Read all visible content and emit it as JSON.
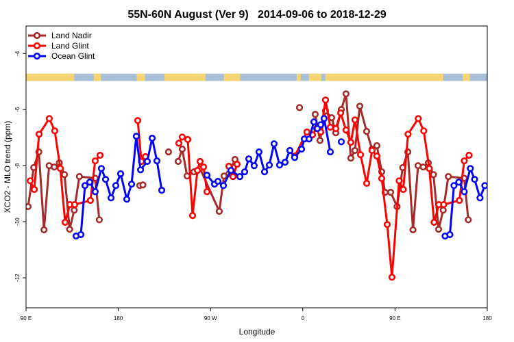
{
  "chart_data": {
    "type": "line",
    "title": "55N-60N August (Ver 9)   2014-09-06 to 2018-12-29",
    "xlabel": "Longitude",
    "ylabel": "XCO2 - MLO trend (ppm)",
    "xlim": [
      90,
      540
    ],
    "ylim": [
      -13.07,
      -3.02
    ],
    "grid": false,
    "legend_position": "top-left",
    "x_ticks": [
      {
        "value": 90,
        "label": "90 E"
      },
      {
        "value": 180,
        "label": "180"
      },
      {
        "value": 270,
        "label": "90 W"
      },
      {
        "value": 360,
        "label": "0"
      },
      {
        "value": 450,
        "label": "90 E"
      },
      {
        "value": 540,
        "label": "180"
      }
    ],
    "y_ticks": [
      {
        "value": -4,
        "label": "-4"
      },
      {
        "value": -6,
        "label": "-6"
      },
      {
        "value": -8,
        "label": "-8"
      },
      {
        "value": -10,
        "label": "-10"
      },
      {
        "value": -12,
        "label": "-12"
      }
    ],
    "map_strip": {
      "y_range": [
        -4.98,
        -4.72
      ],
      "land_color": "#F5D471",
      "ocean_color": "#A9BFD8",
      "land_segments": [
        [
          90,
          137
        ],
        [
          156,
          163
        ],
        [
          198,
          206
        ],
        [
          225,
          265
        ],
        [
          283,
          299
        ],
        [
          354,
          358
        ],
        [
          366,
          378
        ],
        [
          382,
          497
        ],
        [
          516,
          523
        ]
      ]
    },
    "series": [
      {
        "name": "Land Nadir",
        "color": "#A52A2A",
        "segments": [
          [
            [
              92,
              -9.46
            ],
            [
              97.5,
              -8.07
            ],
            [
              102.5,
              -7.51
            ],
            [
              107.5,
              -10.29
            ],
            [
              112.5,
              -8.0
            ],
            [
              117.5,
              -8.05
            ],
            [
              122.5,
              -7.9
            ],
            [
              127.5,
              -8.32
            ],
            [
              132.5,
              -10.27
            ],
            [
              137,
              -9.59
            ],
            [
              142,
              -8.39
            ],
            [
              157.5,
              -8.45
            ],
            [
              161.5,
              -9.93
            ]
          ],
          [
            [
              201,
              -8.71
            ],
            [
              204,
              -8.69
            ]
          ],
          [
            [
              229,
              -7.51
            ]
          ],
          [
            [
              238.4,
              -7.85
            ],
            [
              242.4,
              -7.41
            ],
            [
              247.1,
              -8.37
            ],
            [
              253.8,
              -8.22
            ],
            [
              259.8,
              -8.1
            ],
            [
              278.5,
              -9.63
            ],
            [
              283.2,
              -8.37
            ],
            [
              287.9,
              -8.29
            ],
            [
              293.9,
              -7.78
            ]
          ],
          [
            [
              356.8,
              -5.93
            ]
          ],
          [
            [
              372.1,
              -6.17
            ],
            [
              376.8,
              -7.1
            ],
            [
              382.2,
              -6.05
            ],
            [
              388.2,
              -6.29
            ],
            [
              392.2,
              -6.83
            ],
            [
              397.6,
              -6.0
            ],
            [
              402.2,
              -5.44
            ],
            [
              406.9,
              -7.73
            ],
            [
              410.9,
              -7.46
            ],
            [
              415.6,
              -5.88
            ],
            [
              422.3,
              -6.78
            ],
            [
              427.6,
              -7.41
            ],
            [
              432.3,
              -7.29
            ],
            [
              437,
              -8.22
            ],
            [
              440.3,
              -8.95
            ],
            [
              445.7,
              -8.95
            ],
            [
              452,
              -9.46
            ],
            [
              457.5,
              -8.07
            ],
            [
              462.5,
              -7.51
            ],
            [
              467.5,
              -10.29
            ],
            [
              472.5,
              -8.0
            ],
            [
              477.5,
              -8.05
            ],
            [
              482.5,
              -7.9
            ],
            [
              487.5,
              -8.32
            ],
            [
              492.5,
              -10.27
            ],
            [
              497,
              -9.59
            ],
            [
              502,
              -8.39
            ],
            [
              517.5,
              -8.45
            ],
            [
              521.5,
              -9.93
            ]
          ]
        ]
      },
      {
        "name": "Land Glint",
        "color": "#FF0000",
        "segments": [
          [
            [
              94,
              -8.54
            ],
            [
              98,
              -8.85
            ],
            [
              102.7,
              -6.88
            ],
            [
              112.7,
              -6.32
            ],
            [
              118,
              -6.76
            ],
            [
              123.4,
              -8.1
            ],
            [
              128.1,
              -10.02
            ],
            [
              132.8,
              -9.39
            ],
            [
              137.5,
              -9.39
            ],
            [
              152.8,
              -9.24
            ],
            [
              157.5,
              -7.83
            ],
            [
              162.2,
              -7.63
            ]
          ],
          [
            [
              199,
              -6.39
            ],
            [
              202.5,
              -7.85
            ],
            [
              206.5,
              -7.68
            ]
          ],
          [
            [
              239.1,
              -7.2
            ],
            [
              242.4,
              -6.98
            ],
            [
              247.8,
              -7.07
            ],
            [
              252.5,
              -9.78
            ],
            [
              257.2,
              -8.17
            ],
            [
              259.8,
              -7.85
            ],
            [
              263.2,
              -8.05
            ],
            [
              266.5,
              -8.93
            ]
          ],
          [
            [
              287.9,
              -8.02
            ],
            [
              291.9,
              -8.39
            ],
            [
              295.9,
              -7.95
            ]
          ],
          [
            [
              352.1,
              -7.66
            ],
            [
              364.1,
              -6.8
            ],
            [
              369.5,
              -6.9
            ],
            [
              373.5,
              -6.68
            ],
            [
              377.5,
              -6.8
            ],
            [
              382.2,
              -5.66
            ],
            [
              386.9,
              -6.63
            ],
            [
              392.2,
              -6.68
            ],
            [
              396.9,
              -6.12
            ],
            [
              402.2,
              -6.73
            ],
            [
              406.9,
              -7.17
            ],
            [
              410.9,
              -6.37
            ],
            [
              416.3,
              -7.61
            ],
            [
              422.3,
              -8.63
            ],
            [
              427.6,
              -7.46
            ],
            [
              432.3,
              -7.66
            ],
            [
              437,
              -8.46
            ],
            [
              442.4,
              -10.1
            ],
            [
              447,
              -11.98
            ],
            [
              454,
              -8.54
            ],
            [
              458,
              -8.85
            ],
            [
              462.7,
              -6.88
            ],
            [
              472.7,
              -6.32
            ],
            [
              478,
              -6.76
            ],
            [
              483.4,
              -8.1
            ],
            [
              488.1,
              -10.02
            ],
            [
              492.8,
              -9.39
            ],
            [
              497.5,
              -9.39
            ],
            [
              512.8,
              -9.24
            ],
            [
              517.5,
              -7.83
            ],
            [
              522.2,
              -7.63
            ]
          ]
        ]
      },
      {
        "name": "Ocean Glint",
        "color": "#0000FF",
        "segments": [
          [
            [
              138.8,
              -10.51
            ],
            [
              143.5,
              -10.46
            ],
            [
              147.5,
              -8.71
            ],
            [
              152.2,
              -8.59
            ],
            [
              157.5,
              -8.93
            ],
            [
              163.5,
              -8.1
            ],
            [
              167.6,
              -8.49
            ],
            [
              172.9,
              -9.15
            ],
            [
              177.6,
              -8.71
            ],
            [
              182.3,
              -8.29
            ],
            [
              188.3,
              -9.2
            ],
            [
              193,
              -8.66
            ],
            [
              197.6,
              -6.95
            ],
            [
              201.7,
              -8.15
            ],
            [
              208.3,
              -7.85
            ],
            [
              213,
              -7.02
            ],
            [
              217.7,
              -7.83
            ],
            [
              222.4,
              -8.88
            ]
          ],
          [
            [
              266.5,
              -8.34
            ],
            [
              273.9,
              -8.66
            ],
            [
              277.2,
              -8.56
            ],
            [
              282.6,
              -8.71
            ],
            [
              289.9,
              -8.17
            ],
            [
              298.6,
              -8.39
            ],
            [
              303.3,
              -8.22
            ],
            [
              307.3,
              -7.76
            ],
            [
              312.6,
              -8.0
            ],
            [
              317.3,
              -7.51
            ],
            [
              322.7,
              -8.22
            ],
            [
              327.4,
              -7.98
            ],
            [
              332,
              -7.22
            ],
            [
              337.4,
              -7.98
            ],
            [
              342.7,
              -7.88
            ],
            [
              347.4,
              -7.46
            ],
            [
              352.1,
              -7.71
            ],
            [
              358.8,
              -7.41
            ],
            [
              361.5,
              -7.05
            ],
            [
              366.1,
              -7.05
            ],
            [
              370.8,
              -6.44
            ],
            [
              374.2,
              -6.68
            ],
            [
              377.5,
              -6.54
            ],
            [
              380.8,
              -6.32
            ],
            [
              386.9,
              -7.51
            ]
          ],
          [
            [
              397.6,
              -7.15
            ]
          ],
          [
            [
              498.8,
              -10.51
            ],
            [
              503.5,
              -10.46
            ],
            [
              507.5,
              -8.71
            ],
            [
              512.2,
              -8.59
            ],
            [
              517.5,
              -8.93
            ],
            [
              523.5,
              -8.1
            ],
            [
              527.6,
              -8.49
            ],
            [
              532.9,
              -9.15
            ],
            [
              537.6,
              -8.71
            ]
          ]
        ]
      }
    ]
  }
}
